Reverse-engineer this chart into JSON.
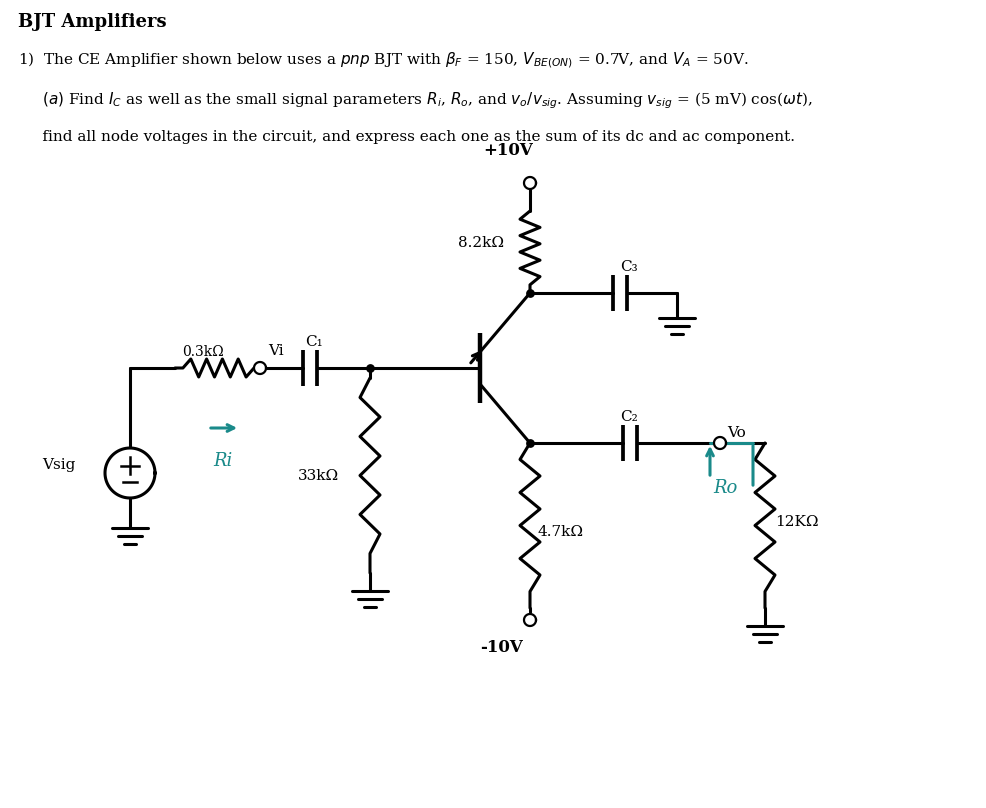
{
  "bg_color": "#ffffff",
  "black": "#000000",
  "teal": "#1a8a8a",
  "title": "BJT Amplifiers",
  "line1": "1)  The CE Amplifier shown below uses a $\\it{pnp}$ BJT with $\\beta_F$ = 150, $V_{BE(ON)}$ = 0.7V, and $V_A$ = 50V.",
  "line2": "     $(a)$ Find $I_C$ as well as the small signal parameters $R_i$, $R_o$, and $v_o/v_{sig}$. Assuming $v_{sig}$ = (5 mV) cos($\\omega t$),",
  "line3": "     find all node voltages in the circuit, and express each one as the sum of its dc and ac component.",
  "vcc_label": "+10V",
  "vee_label": "-10V",
  "r82_label": "8.2kΩ",
  "r33_label": "33kΩ",
  "r47_label": "4.7kΩ",
  "r12_label": "12KΩ",
  "r03_label": "0.3kΩ",
  "c1_label": "C₁",
  "c2_label": "C₂",
  "c3_label": "C₃",
  "vi_label": "Vi",
  "vo_label": "Vo",
  "vsig_label": "Vsig",
  "ri_label": "Ri",
  "ro_label": "Ro",
  "figw": 9.87,
  "figh": 8.08,
  "dpi": 100
}
